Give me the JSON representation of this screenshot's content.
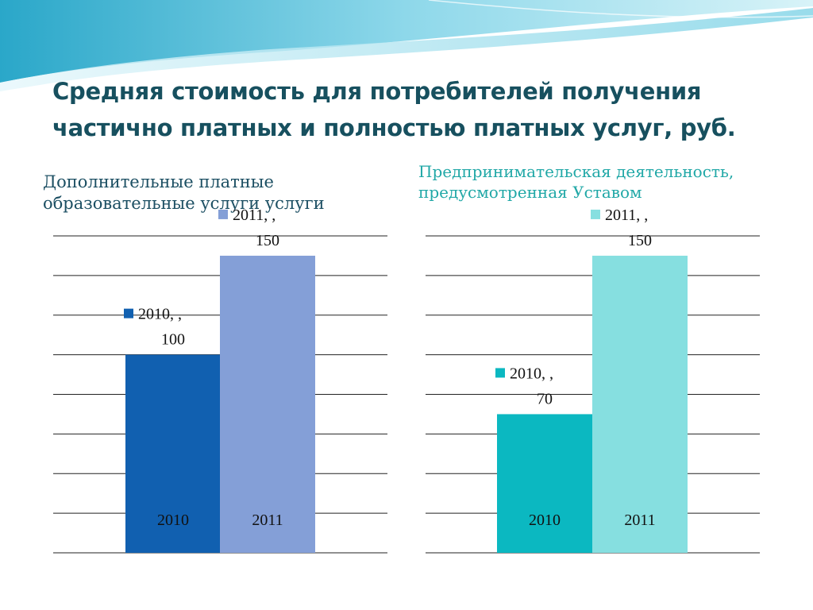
{
  "title": "Средняя стоимость для потребителей получения частично платных и полностью платных услуг, руб.",
  "colors": {
    "title": "#17505f",
    "left_heading": "#1c4f63",
    "right_heading": "#21a8a7",
    "gridline": "#222222"
  },
  "chart_data": [
    {
      "type": "bar",
      "title": "Дополнительные платные образовательные услуги услуги",
      "categories": [
        "2010",
        "2011"
      ],
      "values": [
        100,
        150
      ],
      "colors": [
        "#1160b0",
        "#849fd7"
      ],
      "data_labels": [
        {
          "line1": "2010, ,",
          "line2": "100"
        },
        {
          "line1": "2011, ,",
          "line2": "150"
        }
      ],
      "ylim": [
        0,
        160
      ],
      "grid": true,
      "legend": "none"
    },
    {
      "type": "bar",
      "title": "Предпринимательская деятельность, предусмотренная Уставом",
      "categories": [
        "2010",
        "2011"
      ],
      "values": [
        70,
        150
      ],
      "colors": [
        "#0bb8c1",
        "#86dfe0"
      ],
      "data_labels": [
        {
          "line1": "2010, ,",
          "line2": "70"
        },
        {
          "line1": "2011, ,",
          "line2": "150"
        }
      ],
      "ylim": [
        0,
        160
      ],
      "grid": true,
      "legend": "none"
    }
  ]
}
